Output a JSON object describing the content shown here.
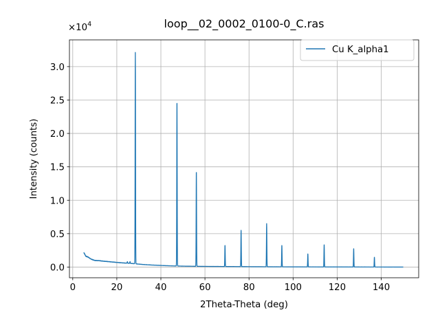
{
  "chart_data": {
    "type": "line",
    "title": "loop__02_0002_0100-0_C.ras",
    "xlabel": "2Theta-Theta (deg)",
    "ylabel": "Intensity (counts)",
    "y_multiplier_label": "×10",
    "y_multiplier_exponent": "4",
    "xlim": [
      -1.5,
      157
    ],
    "ylim": [
      -1600,
      34000
    ],
    "xticks": [
      0,
      20,
      40,
      60,
      80,
      100,
      120,
      140
    ],
    "xtick_labels": [
      "0",
      "20",
      "40",
      "60",
      "80",
      "100",
      "120",
      "140"
    ],
    "yticks": [
      0,
      5000,
      10000,
      15000,
      20000,
      25000,
      30000
    ],
    "ytick_labels": [
      "0.0",
      "0.5",
      "1.0",
      "1.5",
      "2.0",
      "2.5",
      "3.0"
    ],
    "grid": true,
    "legend_position": "top-right",
    "series": [
      {
        "name": "Cu K_alpha1",
        "color": "#1f77b4",
        "background": [
          [
            5,
            2200
          ],
          [
            6,
            1600
          ],
          [
            7,
            1500
          ],
          [
            8,
            1250
          ],
          [
            9,
            1100
          ],
          [
            10,
            1000
          ],
          [
            12,
            950
          ],
          [
            14,
            880
          ],
          [
            16,
            820
          ],
          [
            18,
            760
          ],
          [
            20,
            700
          ],
          [
            22,
            640
          ],
          [
            24,
            600
          ],
          [
            26,
            560
          ],
          [
            27.5,
            520
          ],
          [
            30,
            440
          ],
          [
            32,
            380
          ],
          [
            35,
            320
          ],
          [
            40,
            240
          ],
          [
            45,
            180
          ],
          [
            50,
            140
          ],
          [
            60,
            100
          ],
          [
            70,
            80
          ],
          [
            80,
            60
          ],
          [
            90,
            40
          ],
          [
            100,
            30
          ],
          [
            110,
            20
          ],
          [
            120,
            15
          ],
          [
            130,
            10
          ],
          [
            140,
            5
          ],
          [
            150,
            0
          ]
        ],
        "peaks": [
          {
            "x": 24.8,
            "y": 820
          },
          {
            "x": 26.0,
            "y": 820
          },
          {
            "x": 28.4,
            "y": 32100
          },
          {
            "x": 47.3,
            "y": 25100
          },
          {
            "x": 56.1,
            "y": 14500
          },
          {
            "x": 69.1,
            "y": 3300
          },
          {
            "x": 76.4,
            "y": 5500
          },
          {
            "x": 88.0,
            "y": 6500
          },
          {
            "x": 94.9,
            "y": 3300
          },
          {
            "x": 106.7,
            "y": 2000
          },
          {
            "x": 114.1,
            "y": 3400
          },
          {
            "x": 127.5,
            "y": 2800
          },
          {
            "x": 136.9,
            "y": 1500
          }
        ]
      }
    ]
  }
}
